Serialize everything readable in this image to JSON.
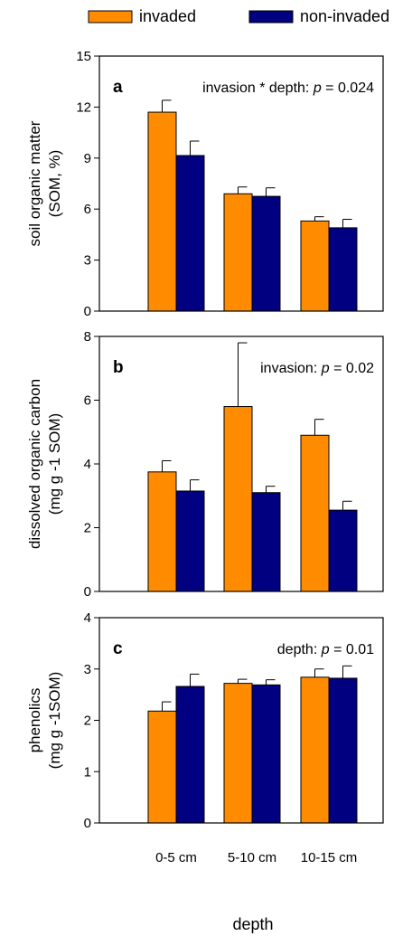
{
  "legend": {
    "items": [
      {
        "label": "invaded",
        "color": "#FF8C00"
      },
      {
        "label": "non-invaded",
        "color": "#000080"
      }
    ]
  },
  "xlabel": "depth",
  "chart_data": [
    {
      "type": "bar",
      "panel_label": "a",
      "annotation": {
        "prefix": "invasion * depth: ",
        "p": "p",
        "suffix": " = 0.024"
      },
      "ylabel": [
        "soil organic matter",
        "(SOM, %)"
      ],
      "categories": [
        "0-5 cm",
        "5-10 cm",
        "10-15 cm"
      ],
      "ylim": [
        0,
        15
      ],
      "yticks": [
        0,
        3,
        6,
        9,
        12,
        15
      ],
      "series": [
        {
          "name": "invaded",
          "color": "#FF8C00",
          "values": [
            11.7,
            6.9,
            5.3
          ],
          "errors": [
            0.7,
            0.4,
            0.25
          ]
        },
        {
          "name": "non-invaded",
          "color": "#000080",
          "values": [
            9.15,
            6.75,
            4.9
          ],
          "errors": [
            0.85,
            0.5,
            0.5
          ]
        }
      ]
    },
    {
      "type": "bar",
      "panel_label": "b",
      "annotation": {
        "prefix": "invasion: ",
        "p": "p",
        "suffix": " = 0.02"
      },
      "ylabel": [
        "dissolved organic carbon",
        "(mg g -1 SOM)"
      ],
      "categories": [
        "0-5 cm",
        "5-10 cm",
        "10-15 cm"
      ],
      "ylim": [
        0,
        8
      ],
      "yticks": [
        0,
        2,
        4,
        6,
        8
      ],
      "series": [
        {
          "name": "invaded",
          "color": "#FF8C00",
          "values": [
            3.75,
            5.8,
            4.9
          ],
          "errors": [
            0.35,
            2.0,
            0.5
          ]
        },
        {
          "name": "non-invaded",
          "color": "#000080",
          "values": [
            3.15,
            3.1,
            2.55
          ],
          "errors": [
            0.35,
            0.2,
            0.28
          ]
        }
      ]
    },
    {
      "type": "bar",
      "panel_label": "c",
      "annotation": {
        "prefix": "depth: ",
        "p": "p",
        "suffix": " = 0.01"
      },
      "ylabel": [
        "phenolics",
        "(mg g -1SOM)"
      ],
      "categories": [
        "0-5 cm",
        "5-10 cm",
        "10-15 cm"
      ],
      "ylim": [
        0,
        4
      ],
      "yticks": [
        0,
        1,
        2,
        3,
        4
      ],
      "series": [
        {
          "name": "invaded",
          "color": "#FF8C00",
          "values": [
            2.18,
            2.72,
            2.84
          ],
          "errors": [
            0.18,
            0.08,
            0.16
          ]
        },
        {
          "name": "non-invaded",
          "color": "#000080",
          "values": [
            2.66,
            2.69,
            2.82
          ],
          "errors": [
            0.24,
            0.1,
            0.24
          ]
        }
      ]
    }
  ]
}
